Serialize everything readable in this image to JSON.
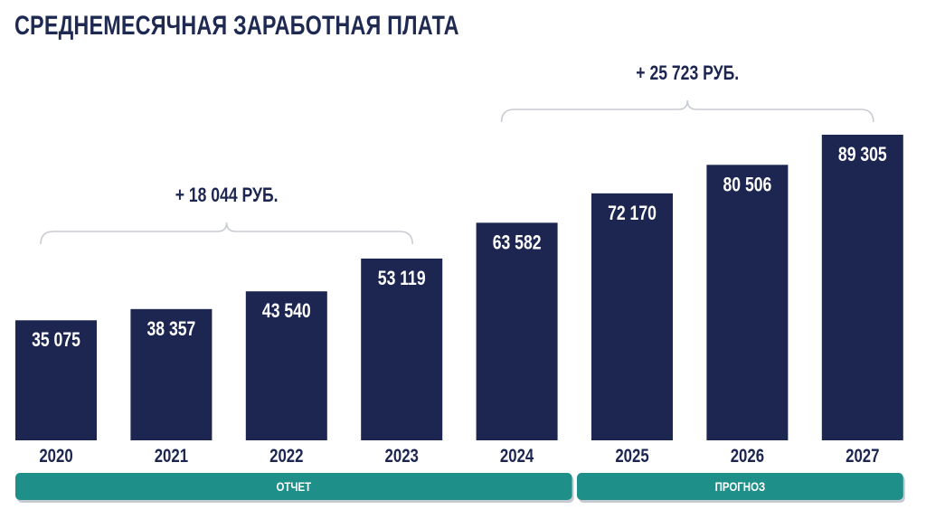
{
  "chart_data": {
    "type": "bar",
    "title": "СРЕДНЕМЕСЯЧНАЯ ЗАРАБОТНАЯ ПЛАТА",
    "categories": [
      "2020",
      "2021",
      "2022",
      "2023",
      "2024",
      "2025",
      "2026",
      "2027"
    ],
    "values": [
      35075,
      38357,
      43540,
      53119,
      63582,
      72170,
      80506,
      89305
    ],
    "value_labels": [
      "35 075",
      "38 357",
      "43 540",
      "53 119",
      "63 582",
      "72 170",
      "80 506",
      "89 305"
    ],
    "ylim": [
      0,
      89305
    ],
    "annotations": [
      {
        "text": "+ 18 044 РУБ.",
        "from": "2020",
        "to": "2023"
      },
      {
        "text": "+ 25 723 РУБ.",
        "from": "2024",
        "to": "2027"
      }
    ],
    "groups": [
      {
        "label": "ОТЧЕТ",
        "from": "2020",
        "to": "2024"
      },
      {
        "label": "ПРОГНОЗ",
        "from": "2025",
        "to": "2027"
      }
    ],
    "colors": {
      "bar": "#1c2651",
      "band": "#1e9089",
      "brace": "#c9ccd3"
    }
  }
}
